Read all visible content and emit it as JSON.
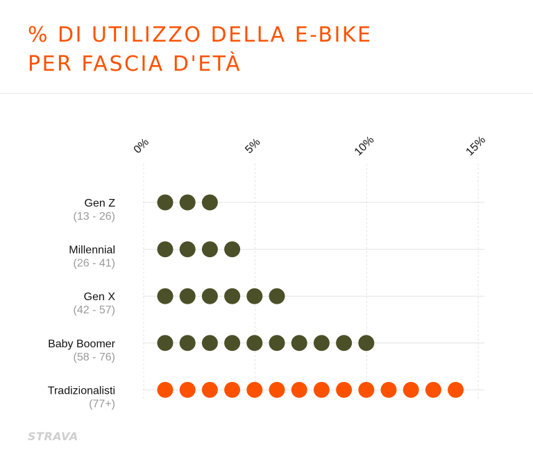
{
  "title": {
    "line1": "% DI UTILIZZO DELLA E-BIKE",
    "line2": "PER FASCIA D'ETÀ"
  },
  "logo": "STRAVA",
  "colors": {
    "title": "#fc5200",
    "dot_default": "#4b5028",
    "dot_highlight": "#fc5200",
    "grid": "#e3e3e3",
    "range_label": "#9a9a9a"
  },
  "chart_data": {
    "type": "dot-bar",
    "title": "% DI UTILIZZO DELLA E-BIKE PER FASCIA D'ETÀ",
    "x_ticks": [
      "0%",
      "5%",
      "10%",
      "15%"
    ],
    "x_tick_values": [
      0,
      5,
      10,
      15
    ],
    "xlim": [
      0,
      15
    ],
    "unit_per_dot": 1,
    "categories": [
      {
        "name": "Gen Z",
        "range": "(13 - 26)",
        "value": 3,
        "highlight": false
      },
      {
        "name": "Millennial",
        "range": "(26 - 41)",
        "value": 4,
        "highlight": false
      },
      {
        "name": "Gen X",
        "range": "(42 - 57)",
        "value": 6,
        "highlight": false
      },
      {
        "name": "Baby Boomer",
        "range": "(58 - 76)",
        "value": 10,
        "highlight": false
      },
      {
        "name": "Tradizionalisti",
        "range": "(77+)",
        "value": 14,
        "highlight": true
      }
    ],
    "grid": true
  }
}
